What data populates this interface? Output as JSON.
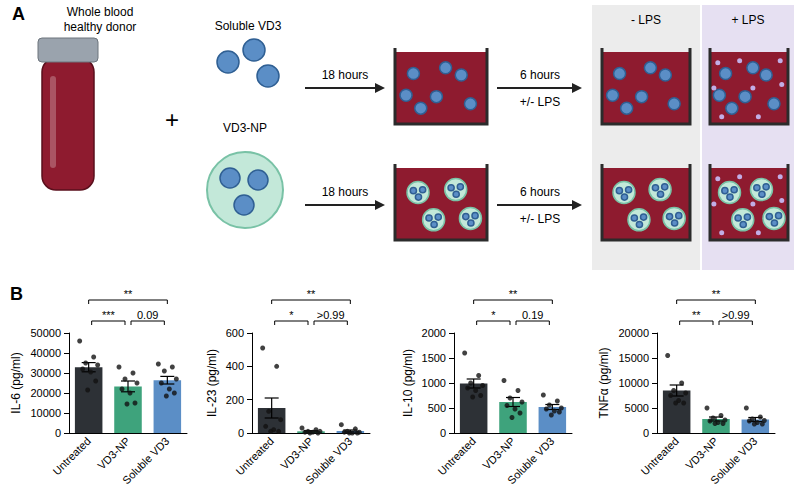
{
  "diagram": {
    "panel": "A",
    "donor": [
      "Whole blood",
      "healthy donor"
    ],
    "plus": "+",
    "treatments": [
      "Soluble VD3",
      "VD3-NP"
    ],
    "step1": "18 hours",
    "step2": [
      "6 hours",
      "+/- LPS"
    ],
    "conditions": [
      "- LPS",
      "+ LPS"
    ]
  },
  "panel_b": "B",
  "chart_data": [
    {
      "type": "bar",
      "ylabel": "IL-6 (pg/ml)",
      "categories": [
        "Untreated",
        "VD3-NP",
        "Soluble VD3"
      ],
      "colors": [
        "#2d3136",
        "#3ea37c",
        "#5b8ec6"
      ],
      "values": [
        32900,
        23300,
        26400
      ],
      "errors": [
        2300,
        2700,
        1900
      ],
      "points": [
        [
          46000,
          38000,
          35000,
          34000,
          32000,
          30500,
          26000,
          21500
        ],
        [
          33000,
          30000,
          27000,
          25000,
          22000,
          20000,
          15000,
          14500
        ],
        [
          34500,
          33000,
          31000,
          27000,
          25000,
          22000,
          20000,
          18500
        ]
      ],
      "ylim": [
        0,
        50000
      ],
      "yticks": [
        0,
        10000,
        20000,
        30000,
        40000,
        50000
      ],
      "grid": false,
      "comparisons": [
        {
          "from": "Untreated",
          "to": "VD3-NP",
          "label": "***"
        },
        {
          "from": "VD3-NP",
          "to": "Soluble VD3",
          "label": "0.09"
        },
        {
          "from": "Untreated",
          "to": "Soluble VD3",
          "label": "**"
        }
      ]
    },
    {
      "type": "bar",
      "ylabel": "IL-23 (pg/ml)",
      "categories": [
        "Untreated",
        "VD3-NP",
        "Soluble VD3"
      ],
      "colors": [
        "#2d3136",
        "#3ea37c",
        "#5b8ec6"
      ],
      "values": [
        150,
        10,
        12
      ],
      "errors": [
        60,
        4,
        6
      ],
      "points": [
        [
          510,
          400,
          130,
          80,
          40,
          20,
          10,
          10
        ],
        [
          30,
          20,
          10,
          10,
          5,
          5,
          0,
          0
        ],
        [
          50,
          25,
          10,
          5,
          5,
          0,
          0,
          0
        ]
      ],
      "ylim": [
        0,
        600
      ],
      "yticks": [
        0,
        200,
        400,
        600
      ],
      "grid": false,
      "comparisons": [
        {
          "from": "Untreated",
          "to": "VD3-NP",
          "label": "*"
        },
        {
          "from": "VD3-NP",
          "to": "Soluble VD3",
          "label": ">0.99"
        },
        {
          "from": "Untreated",
          "to": "Soluble VD3",
          "label": "**"
        }
      ]
    },
    {
      "type": "bar",
      "ylabel": "IL-10 (pg/ml)",
      "categories": [
        "Untreated",
        "VD3-NP",
        "Soluble VD3"
      ],
      "colors": [
        "#2d3136",
        "#3ea37c",
        "#5b8ec6"
      ],
      "values": [
        990,
        620,
        520
      ],
      "errors": [
        90,
        90,
        50
      ],
      "points": [
        [
          1600,
          1150,
          1000,
          950,
          900,
          850,
          750,
          720
        ],
        [
          1050,
          850,
          700,
          620,
          550,
          480,
          400,
          310
        ],
        [
          760,
          640,
          560,
          500,
          480,
          440,
          420,
          360
        ]
      ],
      "ylim": [
        0,
        2000
      ],
      "yticks": [
        0,
        500,
        1000,
        1500,
        2000
      ],
      "grid": false,
      "comparisons": [
        {
          "from": "Untreated",
          "to": "VD3-NP",
          "label": "*"
        },
        {
          "from": "VD3-NP",
          "to": "Soluble VD3",
          "label": "0.19"
        },
        {
          "from": "Untreated",
          "to": "Soluble VD3",
          "label": "**"
        }
      ]
    },
    {
      "type": "bar",
      "ylabel": "TNFα (pg/ml)",
      "categories": [
        "Untreated",
        "VD3-NP",
        "Soluble VD3"
      ],
      "colors": [
        "#2d3136",
        "#3ea37c",
        "#5b8ec6"
      ],
      "values": [
        8500,
        2800,
        2700
      ],
      "errors": [
        1100,
        400,
        400
      ],
      "points": [
        [
          15500,
          10000,
          8500,
          8000,
          7500,
          6500,
          6000,
          6000
        ],
        [
          5000,
          3500,
          3000,
          2600,
          2400,
          2100,
          1900,
          1900
        ],
        [
          5000,
          3200,
          2800,
          2500,
          2400,
          2100,
          1800,
          1800
        ]
      ],
      "ylim": [
        0,
        20000
      ],
      "yticks": [
        0,
        5000,
        10000,
        15000,
        20000
      ],
      "grid": false,
      "comparisons": [
        {
          "from": "Untreated",
          "to": "VD3-NP",
          "label": "**"
        },
        {
          "from": "VD3-NP",
          "to": "Soluble VD3",
          "label": ">0.99"
        },
        {
          "from": "Untreated",
          "to": "Soluble VD3",
          "label": "**"
        }
      ]
    }
  ]
}
